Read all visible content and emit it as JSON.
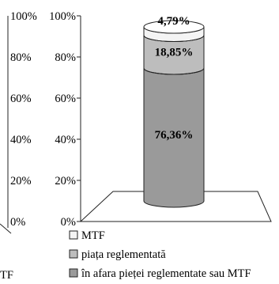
{
  "chart_data": {
    "type": "bar",
    "stacked": true,
    "style": "3d-cylinder",
    "categories": [
      ""
    ],
    "series": [
      {
        "name": "în afara pieței reglementate sau MTF",
        "values": [
          76.36
        ],
        "labels": [
          "76,36%"
        ],
        "color": "#9a9a9a"
      },
      {
        "name": "piața reglementată",
        "values": [
          18.85
        ],
        "labels": [
          "18,85%"
        ],
        "color": "#bdbdbd"
      },
      {
        "name": "MTF",
        "values": [
          4.79
        ],
        "labels": [
          "4,79%"
        ],
        "color": "#f4f4f4"
      }
    ],
    "yticks": [
      "0%",
      "20%",
      "40%",
      "60%",
      "80%",
      "100%"
    ],
    "ylim": [
      0,
      100
    ],
    "legend_position": "bottom-left",
    "legend": [
      "MTF",
      "piața reglementată",
      "în afara pieței reglementate sau MTF"
    ],
    "left_panel": {
      "yticks": [
        "0%",
        "20%",
        "40%",
        "60%",
        "80%",
        "100%"
      ],
      "legend_fragment": "TF"
    }
  }
}
